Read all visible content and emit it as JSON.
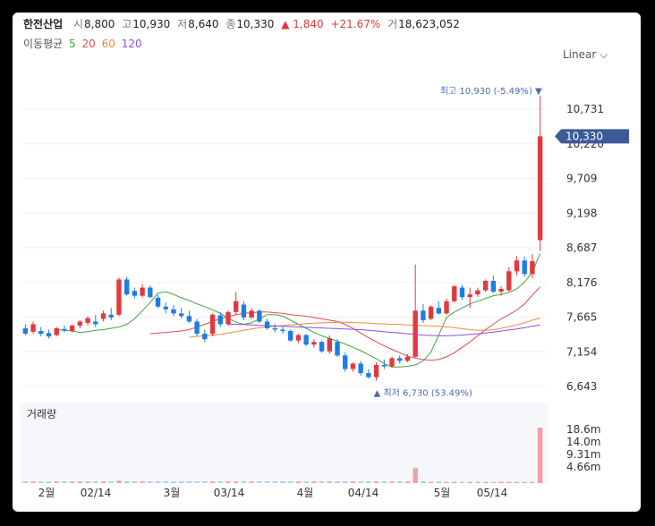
{
  "header": {
    "name": "한전산업",
    "open_label": "시",
    "open": "8,800",
    "high_label": "고",
    "high": "10,930",
    "low_label": "저",
    "low": "8,640",
    "close_label": "종",
    "close": "10,330",
    "change": "▲ 1,840",
    "change_pct": "+21.67%",
    "volume_label": "거",
    "volume": "18,623,052"
  },
  "ma_legend": {
    "label": "이동평균",
    "items": [
      {
        "text": "5",
        "color": "#3fa63f"
      },
      {
        "text": "20",
        "color": "#e24b4b"
      },
      {
        "text": "60",
        "color": "#f08a3c"
      },
      {
        "text": "120",
        "color": "#8a4fe8"
      }
    ]
  },
  "scale_selector": {
    "label": "Linear",
    "icon": "chevron-down-icon"
  },
  "colors": {
    "up": "#e03a3e",
    "down": "#1e7de0",
    "price_tag": "#3d5a99",
    "annotation": "#4a6cb0",
    "volume_up": "#f0a0a5",
    "volume_down": "#a8c8f0"
  },
  "chart_data": {
    "type": "candlestick",
    "y_ticks": [
      "10,731",
      "10,220",
      "9,709",
      "9,198",
      "8,687",
      "8,176",
      "7,665",
      "7,154",
      "6,643"
    ],
    "ylim": [
      6643,
      10731
    ],
    "x_ticks": [
      "2월",
      "02/14",
      "3월",
      "03/14",
      "4월",
      "04/14",
      "5월",
      "05/14"
    ],
    "current_price": "10,330",
    "high_annotation": "최고 10,930 (-5.49%) ▼",
    "low_annotation": "▲ 최저 6,730 (53.49%)",
    "volume_title": "거래량",
    "volume_ticks": [
      "18.6m",
      "14.0m",
      "9.31m",
      "4.66m"
    ],
    "volume_max": 18623052,
    "series": [
      {
        "name": "5",
        "color": "#3fa63f",
        "values": [
          7480,
          7470,
          7460,
          7440,
          7450,
          7470,
          7480,
          7500,
          7520,
          7560,
          7640,
          7760,
          7880,
          8020,
          8040,
          8000,
          7950,
          7910,
          7860,
          7820,
          7770,
          7720,
          7650,
          7590,
          7560,
          7580,
          7640,
          7700,
          7700,
          7680,
          7620,
          7560,
          7500,
          7440,
          7390,
          7350,
          7310,
          7270,
          7220,
          7170,
          7110,
          7050,
          6980,
          6930,
          6930,
          6940,
          6960,
          7020,
          7150,
          7400,
          7660,
          7740,
          7800,
          7860,
          7900,
          7940,
          7980,
          8000,
          8030,
          8080,
          8180,
          8330,
          8600
        ]
      },
      {
        "name": "20",
        "color": "#e24b4b",
        "values": [
          7420,
          7430,
          7440,
          7450,
          7460,
          7480,
          7520,
          7560,
          7600,
          7640,
          7670,
          7700,
          7720,
          7730,
          7740,
          7740,
          7730,
          7720,
          7700,
          7690,
          7680,
          7660,
          7640,
          7620,
          7600,
          7560,
          7500,
          7430,
          7360,
          7300,
          7240,
          7190,
          7140,
          7090,
          7060,
          7040,
          7030,
          7040,
          7080,
          7140,
          7220,
          7300,
          7390,
          7480,
          7560,
          7640,
          7700,
          7770,
          7860,
          7990,
          8110
        ]
      },
      {
        "name": "60",
        "color": "#f08a3c",
        "values": [
          7370,
          7380,
          7390,
          7400,
          7410,
          7430,
          7450,
          7470,
          7490,
          7510,
          7520,
          7530,
          7540,
          7550,
          7560,
          7570,
          7575,
          7580,
          7585,
          7590,
          7590,
          7585,
          7580,
          7575,
          7570,
          7565,
          7560,
          7555,
          7550,
          7545,
          7540,
          7535,
          7530,
          7520,
          7510,
          7495,
          7480,
          7470,
          7470,
          7480,
          7500,
          7525,
          7550,
          7580,
          7620,
          7650
        ]
      },
      {
        "name": "120",
        "color": "#8a4fe8",
        "values": [
          7560,
          7560,
          7555,
          7550,
          7545,
          7540,
          7535,
          7530,
          7525,
          7520,
          7515,
          7510,
          7505,
          7500,
          7495,
          7490,
          7485,
          7480,
          7470,
          7460,
          7450,
          7440,
          7430,
          7420,
          7410,
          7400,
          7395,
          7390,
          7390,
          7395,
          7400,
          7410,
          7420,
          7430,
          7445,
          7460,
          7475,
          7490,
          7510,
          7530,
          7550
        ]
      }
    ],
    "candles": [
      {
        "o": 7500,
        "h": 7560,
        "l": 7400,
        "c": 7420
      },
      {
        "o": 7450,
        "h": 7600,
        "l": 7420,
        "c": 7560
      },
      {
        "o": 7460,
        "h": 7520,
        "l": 7380,
        "c": 7420
      },
      {
        "o": 7430,
        "h": 7480,
        "l": 7350,
        "c": 7380
      },
      {
        "o": 7400,
        "h": 7520,
        "l": 7380,
        "c": 7500
      },
      {
        "o": 7490,
        "h": 7540,
        "l": 7440,
        "c": 7470
      },
      {
        "o": 7460,
        "h": 7560,
        "l": 7440,
        "c": 7540
      },
      {
        "o": 7540,
        "h": 7620,
        "l": 7500,
        "c": 7600
      },
      {
        "o": 7580,
        "h": 7680,
        "l": 7540,
        "c": 7650
      },
      {
        "o": 7600,
        "h": 7700,
        "l": 7520,
        "c": 7560
      },
      {
        "o": 7640,
        "h": 7760,
        "l": 7600,
        "c": 7720
      },
      {
        "o": 7700,
        "h": 7800,
        "l": 7620,
        "c": 7660
      },
      {
        "o": 7700,
        "h": 8250,
        "l": 7680,
        "c": 8220
      },
      {
        "o": 8220,
        "h": 8260,
        "l": 7980,
        "c": 8000
      },
      {
        "o": 8050,
        "h": 8100,
        "l": 7940,
        "c": 7980
      },
      {
        "o": 7980,
        "h": 8150,
        "l": 7960,
        "c": 8100
      },
      {
        "o": 8100,
        "h": 8130,
        "l": 7950,
        "c": 7960
      },
      {
        "o": 7950,
        "h": 8000,
        "l": 7800,
        "c": 7820
      },
      {
        "o": 7820,
        "h": 7880,
        "l": 7720,
        "c": 7780
      },
      {
        "o": 7780,
        "h": 7840,
        "l": 7680,
        "c": 7720
      },
      {
        "o": 7720,
        "h": 7800,
        "l": 7640,
        "c": 7680
      },
      {
        "o": 7680,
        "h": 7760,
        "l": 7580,
        "c": 7600
      },
      {
        "o": 7600,
        "h": 7640,
        "l": 7380,
        "c": 7420
      },
      {
        "o": 7420,
        "h": 7480,
        "l": 7300,
        "c": 7340
      },
      {
        "o": 7420,
        "h": 7720,
        "l": 7380,
        "c": 7700
      },
      {
        "o": 7690,
        "h": 7740,
        "l": 7520,
        "c": 7560
      },
      {
        "o": 7560,
        "h": 7760,
        "l": 7540,
        "c": 7740
      },
      {
        "o": 7740,
        "h": 8040,
        "l": 7700,
        "c": 7900
      },
      {
        "o": 7850,
        "h": 7900,
        "l": 7620,
        "c": 7660
      },
      {
        "o": 7660,
        "h": 7800,
        "l": 7640,
        "c": 7760
      },
      {
        "o": 7760,
        "h": 7780,
        "l": 7580,
        "c": 7600
      },
      {
        "o": 7600,
        "h": 7640,
        "l": 7480,
        "c": 7500
      },
      {
        "o": 7500,
        "h": 7560,
        "l": 7440,
        "c": 7480
      },
      {
        "o": 7480,
        "h": 7520,
        "l": 7420,
        "c": 7460
      },
      {
        "o": 7460,
        "h": 7480,
        "l": 7300,
        "c": 7320
      },
      {
        "o": 7320,
        "h": 7420,
        "l": 7280,
        "c": 7400
      },
      {
        "o": 7400,
        "h": 7420,
        "l": 7240,
        "c": 7260
      },
      {
        "o": 7260,
        "h": 7340,
        "l": 7220,
        "c": 7300
      },
      {
        "o": 7300,
        "h": 7320,
        "l": 7140,
        "c": 7160
      },
      {
        "o": 7160,
        "h": 7400,
        "l": 7120,
        "c": 7350
      },
      {
        "o": 7300,
        "h": 7340,
        "l": 7080,
        "c": 7100
      },
      {
        "o": 7100,
        "h": 7140,
        "l": 6860,
        "c": 6900
      },
      {
        "o": 6900,
        "h": 7000,
        "l": 6860,
        "c": 6980
      },
      {
        "o": 6980,
        "h": 7020,
        "l": 6800,
        "c": 6840
      },
      {
        "o": 6840,
        "h": 6900,
        "l": 6760,
        "c": 6780
      },
      {
        "o": 6780,
        "h": 7000,
        "l": 6730,
        "c": 6960
      },
      {
        "o": 6960,
        "h": 7040,
        "l": 6900,
        "c": 6940
      },
      {
        "o": 6940,
        "h": 7080,
        "l": 6920,
        "c": 7060
      },
      {
        "o": 7060,
        "h": 7100,
        "l": 6980,
        "c": 7020
      },
      {
        "o": 7020,
        "h": 7120,
        "l": 7000,
        "c": 7080
      },
      {
        "o": 7080,
        "h": 8440,
        "l": 7060,
        "c": 7760
      },
      {
        "o": 7760,
        "h": 7860,
        "l": 7580,
        "c": 7620
      },
      {
        "o": 7640,
        "h": 7840,
        "l": 7620,
        "c": 7820
      },
      {
        "o": 7800,
        "h": 7900,
        "l": 7700,
        "c": 7720
      },
      {
        "o": 7720,
        "h": 7940,
        "l": 7700,
        "c": 7900
      },
      {
        "o": 7900,
        "h": 8140,
        "l": 7880,
        "c": 8120
      },
      {
        "o": 8100,
        "h": 8140,
        "l": 7920,
        "c": 7960
      },
      {
        "o": 7960,
        "h": 8100,
        "l": 7800,
        "c": 8000
      },
      {
        "o": 8000,
        "h": 8100,
        "l": 7960,
        "c": 8060
      },
      {
        "o": 8060,
        "h": 8220,
        "l": 8040,
        "c": 8200
      },
      {
        "o": 8200,
        "h": 8280,
        "l": 8020,
        "c": 8040
      },
      {
        "o": 8040,
        "h": 8120,
        "l": 7980,
        "c": 8080
      },
      {
        "o": 8060,
        "h": 8400,
        "l": 8040,
        "c": 8340
      },
      {
        "o": 8340,
        "h": 8560,
        "l": 8280,
        "c": 8500
      },
      {
        "o": 8500,
        "h": 8560,
        "l": 8260,
        "c": 8300
      },
      {
        "o": 8300,
        "h": 8590,
        "l": 8240,
        "c": 8490
      },
      {
        "o": 8800,
        "h": 10930,
        "l": 8640,
        "c": 10330
      }
    ],
    "volumes": [
      0.5,
      0.5,
      0.5,
      0.5,
      0.5,
      0.5,
      0.5,
      0.5,
      0.5,
      0.5,
      0.5,
      0.5,
      0.8,
      0.6,
      0.5,
      0.5,
      0.5,
      0.5,
      0.5,
      0.5,
      0.5,
      0.5,
      0.5,
      0.5,
      0.5,
      0.5,
      0.5,
      0.5,
      0.5,
      0.5,
      0.5,
      0.5,
      0.5,
      0.5,
      0.5,
      0.5,
      0.5,
      0.5,
      0.5,
      0.5,
      0.5,
      0.5,
      0.5,
      0.5,
      0.5,
      0.5,
      0.5,
      0.5,
      0.5,
      0.5,
      5.0,
      0.6,
      0.4,
      0.5,
      0.4,
      0.4,
      0.4,
      0.4,
      0.4,
      0.4,
      0.4,
      0.4,
      0.4,
      0.4,
      0.4,
      0.4,
      18.6
    ]
  }
}
